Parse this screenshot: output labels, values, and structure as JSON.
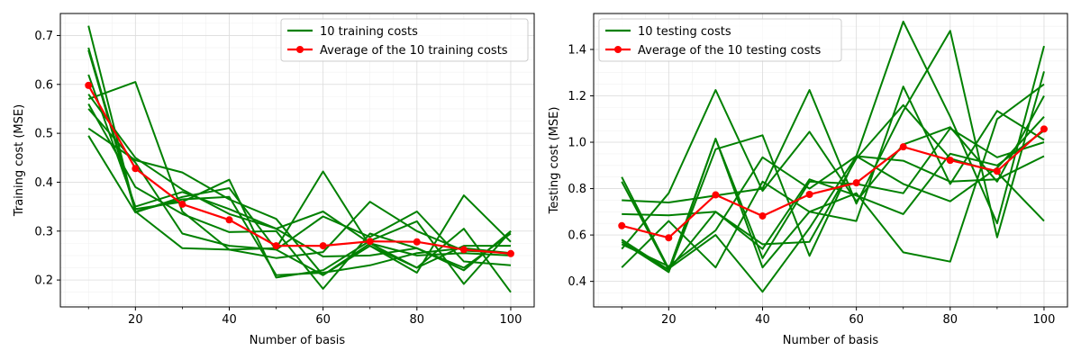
{
  "chart_data": [
    {
      "type": "line",
      "xlabel": "Number of basis",
      "ylabel": "Training cost (MSE)",
      "xlim": [
        4,
        105
      ],
      "ylim": [
        0.145,
        0.745
      ],
      "xticks": [
        20,
        40,
        60,
        80,
        100
      ],
      "yticks": [
        0.2,
        0.3,
        0.4,
        0.5,
        0.6,
        0.7
      ],
      "ytick_labels": [
        "0.2",
        "0.3",
        "0.4",
        "0.5",
        "0.6",
        "0.7"
      ],
      "x": [
        10,
        20,
        30,
        40,
        50,
        60,
        70,
        80,
        90,
        100
      ],
      "grid": true,
      "legend_position": "upper-right",
      "group_legend": "10 training costs",
      "group_color": "#008000",
      "average_color": "#ff0000",
      "series": [
        {
          "values": [
            0.72,
            0.34,
            0.365,
            0.37,
            0.21,
            0.215,
            0.23,
            0.255,
            0.265,
            0.255
          ]
        },
        {
          "values": [
            0.675,
            0.345,
            0.36,
            0.405,
            0.205,
            0.22,
            0.28,
            0.32,
            0.192,
            0.3
          ]
        },
        {
          "values": [
            0.67,
            0.34,
            0.265,
            0.262,
            0.265,
            0.422,
            0.27,
            0.215,
            0.373,
            0.278
          ]
        },
        {
          "values": [
            0.62,
            0.35,
            0.38,
            0.345,
            0.305,
            0.34,
            0.275,
            0.225,
            0.305,
            0.175
          ]
        },
        {
          "values": [
            0.57,
            0.605,
            0.34,
            0.262,
            0.245,
            0.257,
            0.36,
            0.3,
            0.26,
            0.255
          ]
        },
        {
          "values": [
            0.56,
            0.39,
            0.335,
            0.298,
            0.3,
            0.182,
            0.295,
            0.265,
            0.225,
            0.295
          ]
        },
        {
          "values": [
            0.55,
            0.44,
            0.295,
            0.27,
            0.262,
            0.21,
            0.27,
            0.225,
            0.27,
            0.27
          ]
        },
        {
          "values": [
            0.51,
            0.445,
            0.42,
            0.365,
            0.325,
            0.21,
            0.275,
            0.25,
            0.255,
            0.25
          ]
        },
        {
          "values": [
            0.495,
            0.338,
            0.37,
            0.388,
            0.262,
            0.33,
            0.288,
            0.34,
            0.238,
            0.23
          ]
        },
        {
          "values": [
            0.58,
            0.45,
            0.385,
            0.335,
            0.305,
            0.248,
            0.25,
            0.265,
            0.22,
            0.3
          ]
        }
      ],
      "average": {
        "name": "Average of the 10 training costs",
        "values": [
          0.598,
          0.428,
          0.355,
          0.323,
          0.27,
          0.27,
          0.279,
          0.278,
          0.262,
          0.254
        ]
      }
    },
    {
      "type": "line",
      "xlabel": "Number of basis",
      "ylabel": "Testing cost (MSE)",
      "xlim": [
        4,
        105
      ],
      "ylim": [
        0.29,
        1.555
      ],
      "xticks": [
        20,
        40,
        60,
        80,
        100
      ],
      "yticks": [
        0.4,
        0.6,
        0.8,
        1.0,
        1.2,
        1.4
      ],
      "ytick_labels": [
        "0.4",
        "0.6",
        "0.8",
        "1.0",
        "1.2",
        "1.4"
      ],
      "x": [
        10,
        20,
        30,
        40,
        50,
        60,
        70,
        80,
        90,
        100
      ],
      "grid": true,
      "legend_position": "upper-left",
      "group_legend": "10 testing costs",
      "group_color": "#008000",
      "average_color": "#ff0000",
      "series": [
        {
          "values": [
            0.85,
            0.455,
            0.6,
            0.355,
            0.63,
            0.94,
            1.52,
            1.11,
            0.65,
            1.415
          ]
        },
        {
          "values": [
            0.83,
            0.45,
            1.015,
            0.46,
            0.7,
            0.66,
            1.24,
            0.82,
            1.135,
            1.01
          ]
        },
        {
          "values": [
            0.46,
            0.66,
            0.46,
            0.83,
            0.7,
            0.78,
            0.525,
            0.485,
            1.1,
            1.25
          ]
        },
        {
          "values": [
            0.75,
            0.74,
            0.77,
            0.8,
            1.225,
            0.735,
            1.135,
            1.48,
            0.59,
            1.305
          ]
        },
        {
          "values": [
            0.69,
            0.685,
            0.7,
            0.56,
            0.57,
            0.93,
            1.16,
            0.93,
            0.87,
            0.66
          ]
        },
        {
          "values": [
            0.54,
            0.78,
            1.225,
            0.79,
            1.045,
            0.745,
            0.99,
            1.065,
            0.83,
            1.2
          ]
        },
        {
          "values": [
            0.58,
            0.44,
            0.97,
            1.03,
            0.51,
            0.94,
            0.92,
            0.83,
            0.84,
            0.94
          ]
        },
        {
          "values": [
            0.56,
            0.465,
            0.62,
            0.935,
            0.8,
            0.94,
            0.82,
            0.745,
            0.89,
            1.11
          ]
        },
        {
          "values": [
            0.57,
            0.44,
            1.015,
            0.5,
            0.83,
            0.82,
            0.78,
            1.06,
            0.935,
            1.0
          ]
        },
        {
          "values": [
            0.58,
            0.45,
            0.7,
            0.54,
            0.84,
            0.77,
            0.69,
            0.95,
            0.9,
            1.05
          ]
        }
      ],
      "average": {
        "name": "Average of the 10 testing costs",
        "values": [
          0.64,
          0.588,
          0.773,
          0.682,
          0.775,
          0.825,
          0.98,
          0.922,
          0.875,
          1.057
        ]
      }
    }
  ]
}
